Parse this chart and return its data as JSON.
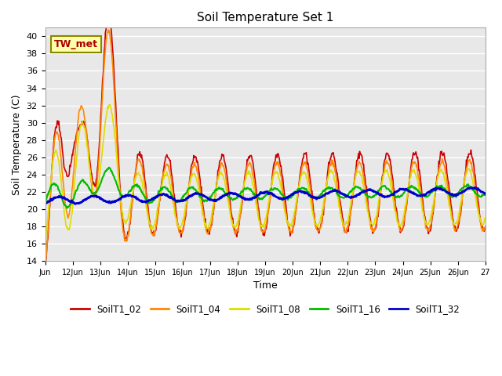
{
  "title": "Soil Temperature Set 1",
  "xlabel": "Time",
  "ylabel": "Soil Temperature (C)",
  "ylim": [
    14,
    41
  ],
  "yticks": [
    14,
    16,
    18,
    20,
    22,
    24,
    26,
    28,
    30,
    32,
    34,
    36,
    38,
    40
  ],
  "xlim": [
    0,
    16
  ],
  "fig_bg": "#ffffff",
  "plot_bg": "#e8e8e8",
  "grid_color": "#ffffff",
  "series_colors": {
    "SoilT1_02": "#cc0000",
    "SoilT1_04": "#ff8800",
    "SoilT1_08": "#dddd00",
    "SoilT1_16": "#00bb00",
    "SoilT1_32": "#0000cc"
  },
  "series_lw": {
    "SoilT1_02": 1.2,
    "SoilT1_04": 1.2,
    "SoilT1_08": 1.2,
    "SoilT1_16": 1.5,
    "SoilT1_32": 2.0
  },
  "annotation": {
    "text": "TW_met",
    "color": "#aa0000",
    "bg": "#ffffaa",
    "border": "#888800"
  },
  "figsize": [
    6.4,
    4.8
  ],
  "dpi": 100
}
